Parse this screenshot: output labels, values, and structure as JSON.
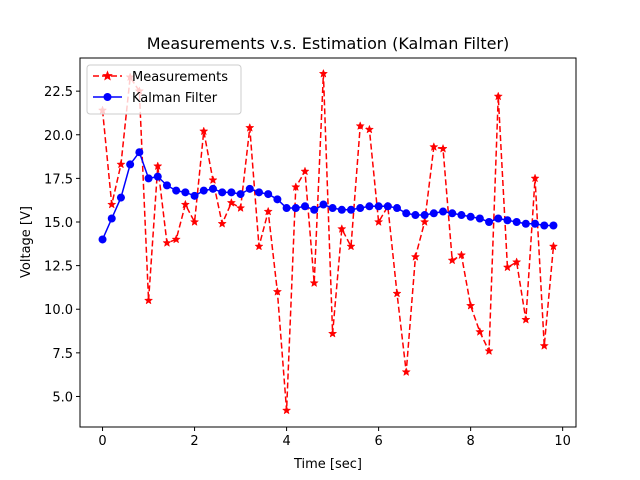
{
  "chart_data": {
    "type": "line",
    "title": "Measurements v.s. Estimation (Kalman Filter)",
    "xlabel": "Time [sec]",
    "ylabel": "Voltage [V]",
    "xlim": [
      -0.49,
      10.29
    ],
    "ylim": [
      3.25,
      24.4
    ],
    "xticks": [
      0,
      2,
      4,
      6,
      8,
      10
    ],
    "yticks": [
      5.0,
      7.5,
      10.0,
      12.5,
      15.0,
      17.5,
      20.0,
      22.5
    ],
    "xtick_labels": [
      "0",
      "2",
      "4",
      "6",
      "8",
      "10"
    ],
    "ytick_labels": [
      "5.0",
      "7.5",
      "10.0",
      "12.5",
      "15.0",
      "17.5",
      "20.0",
      "22.5"
    ],
    "legend_position": "upper-left",
    "grid": false,
    "x": [
      0.0,
      0.2,
      0.4,
      0.6,
      0.8,
      1.0,
      1.2,
      1.4,
      1.6,
      1.8,
      2.0,
      2.2,
      2.4,
      2.6,
      2.8,
      3.0,
      3.2,
      3.4,
      3.6,
      3.8,
      4.0,
      4.2,
      4.4,
      4.6,
      4.8,
      5.0,
      5.2,
      5.4,
      5.6,
      5.8,
      6.0,
      6.2,
      6.4,
      6.6,
      6.8,
      7.0,
      7.2,
      7.4,
      7.6,
      7.8,
      8.0,
      8.2,
      8.4,
      8.6,
      8.8,
      9.0,
      9.2,
      9.4,
      9.6,
      9.8
    ],
    "series": [
      {
        "name": "Measurements",
        "color": "#ff0000",
        "line_style": "dashed",
        "marker": "star",
        "values": [
          21.4,
          16.0,
          18.3,
          23.3,
          22.5,
          10.5,
          18.2,
          13.8,
          14.0,
          16.0,
          15.0,
          20.2,
          17.4,
          14.9,
          16.1,
          15.8,
          20.4,
          13.6,
          15.6,
          11.0,
          4.2,
          17.0,
          17.9,
          11.5,
          23.5,
          8.6,
          14.6,
          13.6,
          20.5,
          20.3,
          15.0,
          15.9,
          10.9,
          6.4,
          13.0,
          15.0,
          19.3,
          19.2,
          12.8,
          13.1,
          10.2,
          8.7,
          7.6,
          22.2,
          12.4,
          12.7,
          9.4,
          17.5,
          7.9,
          13.6
        ]
      },
      {
        "name": "Kalman Filter",
        "color": "#0000ff",
        "line_style": "solid",
        "marker": "circle",
        "values": [
          14.0,
          15.2,
          16.4,
          18.3,
          19.0,
          17.5,
          17.6,
          17.1,
          16.8,
          16.7,
          16.5,
          16.8,
          16.9,
          16.7,
          16.7,
          16.6,
          16.9,
          16.7,
          16.6,
          16.3,
          15.8,
          15.8,
          15.9,
          15.7,
          16.0,
          15.8,
          15.7,
          15.7,
          15.8,
          15.9,
          15.9,
          15.9,
          15.8,
          15.5,
          15.4,
          15.4,
          15.5,
          15.6,
          15.5,
          15.4,
          15.3,
          15.2,
          15.0,
          15.2,
          15.1,
          15.0,
          14.9,
          14.9,
          14.8,
          14.8
        ]
      }
    ]
  }
}
